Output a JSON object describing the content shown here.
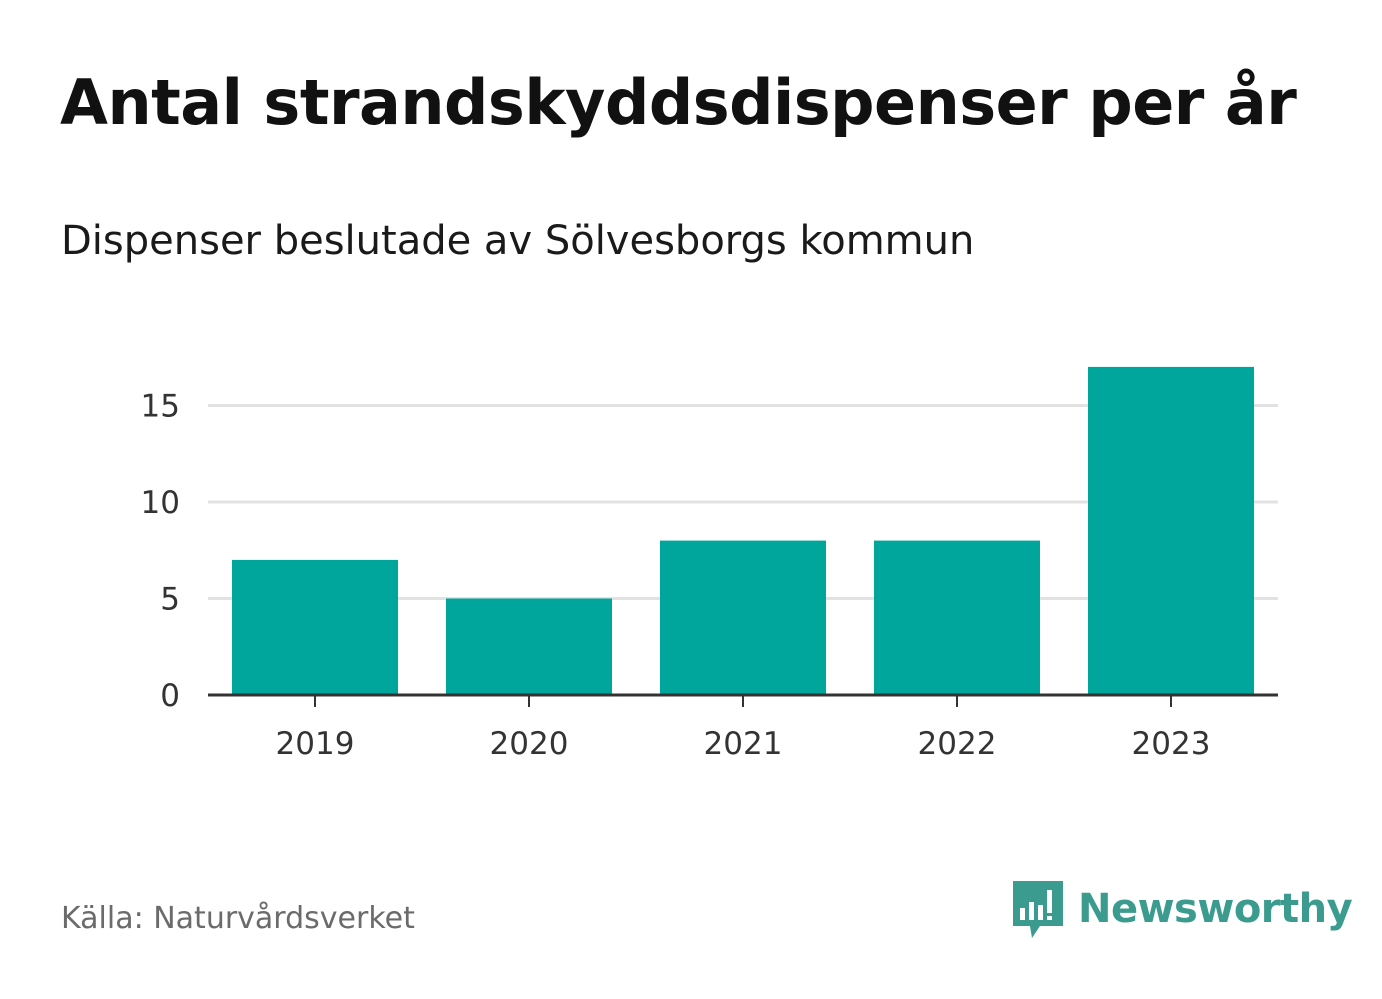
{
  "title": "Antal strandskyddsdispenser per år",
  "subtitle": "Dispenser beslutade av Sölvesborgs kommun",
  "source": "Källa: Naturvårdsverket",
  "brand": {
    "name": "Newsworthy",
    "color": "#3b9b8e",
    "icon": "newsworthy-logo-icon"
  },
  "colors": {
    "bar": "#00a59b",
    "grid": "#e2e2e2",
    "axis": "#333333"
  },
  "chart_data": {
    "type": "bar",
    "title": "Antal strandskyddsdispenser per år",
    "subtitle": "Dispenser beslutade av Sölvesborgs kommun",
    "categories": [
      "2019",
      "2020",
      "2021",
      "2022",
      "2023"
    ],
    "values": [
      7,
      5,
      8,
      8,
      17
    ],
    "xlabel": "",
    "ylabel": "",
    "ylim": [
      0,
      17
    ],
    "yticks": [
      0,
      5,
      10,
      15
    ],
    "grid": true
  }
}
